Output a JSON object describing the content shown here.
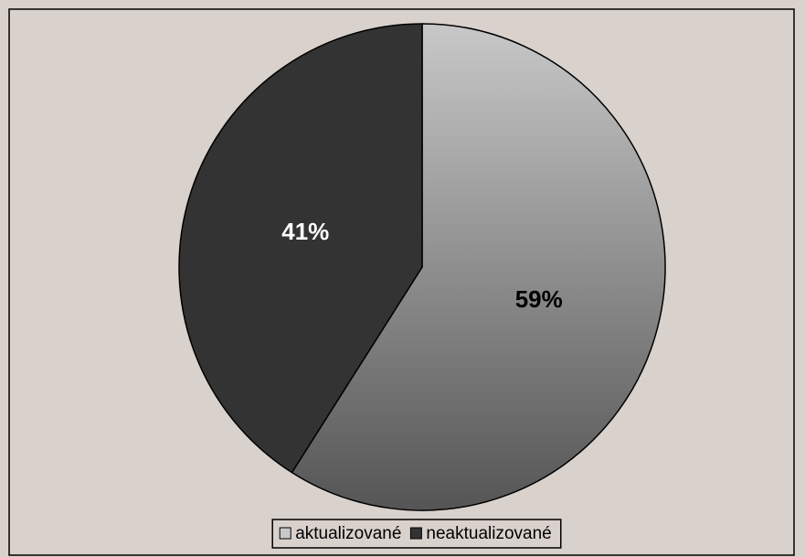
{
  "chart_data": {
    "type": "pie",
    "categories": [
      "aktualizované",
      "neaktualizované"
    ],
    "values": [
      59,
      41
    ],
    "value_labels": [
      "59%",
      "41%"
    ],
    "colors": [
      "#c8c8c8",
      "#333333"
    ],
    "legend": "bottom"
  }
}
